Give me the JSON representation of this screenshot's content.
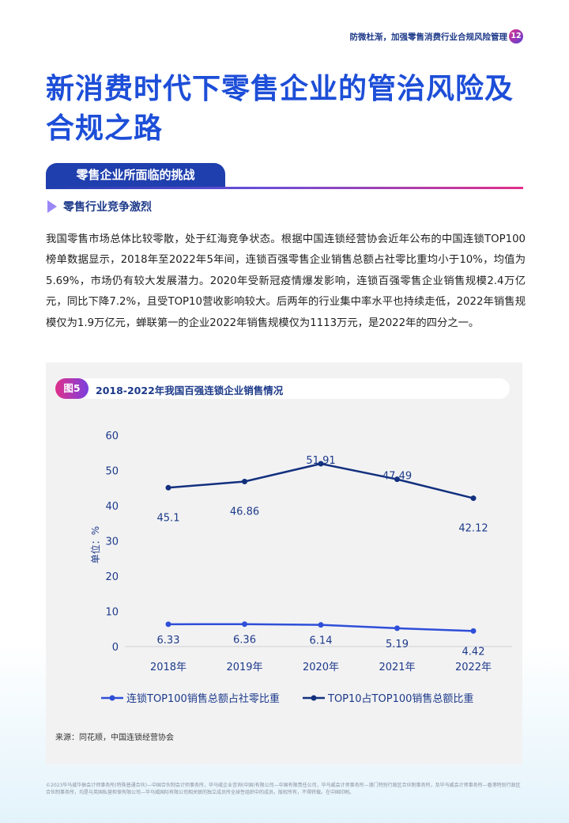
{
  "header": {
    "running_title": "防微杜渐，加强零售消费行业合规风险管理",
    "page_number": "12"
  },
  "main_title": "新消费时代下零售企业的管治风险及合规之路",
  "section": {
    "title": "零售企业所面临的挑战"
  },
  "subsection": {
    "title": "零售行业竞争激烈"
  },
  "body_paragraph": "我国零售市场总体比较零散，处于红海竞争状态。根据中国连锁经营协会近年公布的中国连锁TOP100榜单数据显示，2018年至2022年5年间，连锁百强零售企业销售总额占社零比重均小于10%，均值为5.69%，市场仍有较大发展潜力。2020年受新冠疫情爆发影响，连锁百强零售企业销售规模2.4万亿元，同比下降7.2%，且受TOP10营收影响较大。后两年的行业集中率水平也持续走低，2022年销售规模仅为1.9万亿元，蝉联第一的企业2022年销售规模仅为1113万元，是2022年的四分之一。",
  "figure": {
    "badge": "图5",
    "title": "2018-2022年我国百强连锁企业销售情况",
    "source": "来源：同花顺，中国连锁经营协会"
  },
  "chart_data": {
    "type": "line",
    "categories": [
      "2018年",
      "2019年",
      "2020年",
      "2021年",
      "2022年"
    ],
    "series": [
      {
        "name": "连锁TOP100销售总额占社零比重",
        "values": [
          6.33,
          6.36,
          6.14,
          5.19,
          4.42
        ],
        "color": "#2f4fd8"
      },
      {
        "name": "TOP10占TOP100销售总额比重",
        "values": [
          45.1,
          46.86,
          51.91,
          47.49,
          42.12
        ],
        "color": "#12307e"
      }
    ],
    "ylabel": "单位：%",
    "ylim": [
      0,
      60
    ],
    "yticks": [
      "0",
      "10",
      "20",
      "30",
      "40",
      "50",
      "60"
    ],
    "legend_position": "bottom",
    "grid": false
  },
  "footer": {
    "text": "©2023毕马威华振会计师事务所(特殊普通合伙)—中国合伙制会计师事务所，毕马威企业咨询(中国)有限公司—中国有限责任公司，毕马威会计师事务所—澳门特别行政区合伙制事务所，及毕马威会计师事务所—香港特别行政区合伙制事务所，均是与英国私营担保有限公司—毕马威国际有限公司相关联的独立成员所全球性组织中的成员。版权所有，不得转载。在中国印刷。"
  }
}
